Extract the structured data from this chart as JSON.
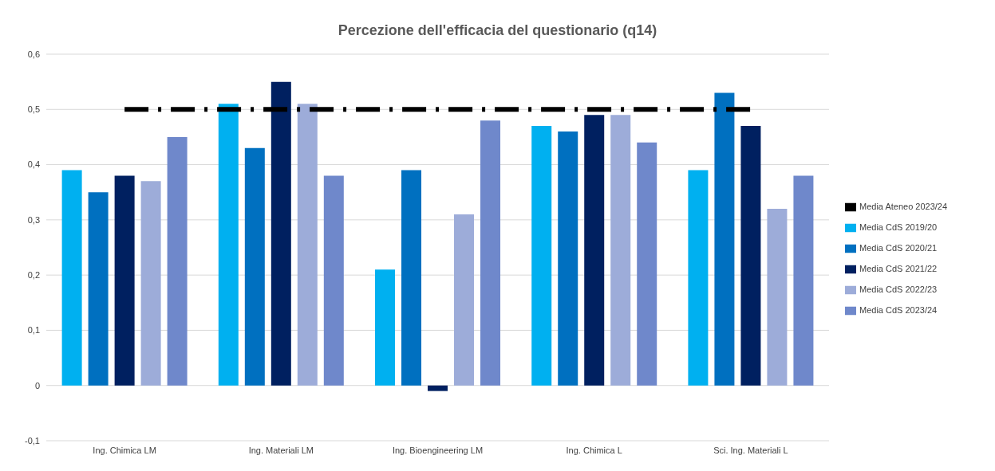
{
  "chart_data": {
    "type": "bar",
    "title": "Percezione dell'efficacia del questionario (q14)",
    "categories": [
      "Ing. Chimica LM",
      "Ing. Materiali LM",
      "Ing. Bioengineering LM",
      "Ing. Chimica L",
      "Sci. Ing. Materiali L"
    ],
    "series": [
      {
        "name": "Media CdS 2019/20",
        "color": "#00b0f0",
        "values": [
          0.39,
          0.51,
          0.21,
          0.47,
          0.39
        ]
      },
      {
        "name": "Media CdS 2020/21",
        "color": "#0070c0",
        "values": [
          0.35,
          0.43,
          0.39,
          0.46,
          0.53
        ]
      },
      {
        "name": "Media CdS 2021/22",
        "color": "#002060",
        "values": [
          0.38,
          0.55,
          -0.01,
          0.49,
          0.47
        ]
      },
      {
        "name": "Media CdS 2022/23",
        "color": "#9dacd9",
        "values": [
          0.37,
          0.51,
          0.31,
          0.49,
          0.32
        ]
      },
      {
        "name": "Media CdS 2023/24",
        "color": "#6f88cb",
        "values": [
          0.45,
          0.38,
          0.48,
          0.44,
          0.38
        ]
      },
      {
        "name": "Media Ateneo 2023/24",
        "type": "line",
        "color": "#000000",
        "line_style": "dashed",
        "marker": "none",
        "values": [
          0.5,
          0.5,
          0.5,
          0.5,
          0.5
        ]
      }
    ],
    "ylim": [
      -0.1,
      0.6
    ],
    "yticks": [
      {
        "value": -0.1,
        "label": "-0,1"
      },
      {
        "value": 0,
        "label": "0"
      },
      {
        "value": 0.1,
        "label": "0,1"
      },
      {
        "value": 0.2,
        "label": "0,2"
      },
      {
        "value": 0.3,
        "label": "0,3"
      },
      {
        "value": 0.4,
        "label": "0,4"
      },
      {
        "value": 0.5,
        "label": "0,5"
      },
      {
        "value": 0.6,
        "label": "0,6"
      }
    ],
    "grid": "y",
    "legend": "right"
  }
}
